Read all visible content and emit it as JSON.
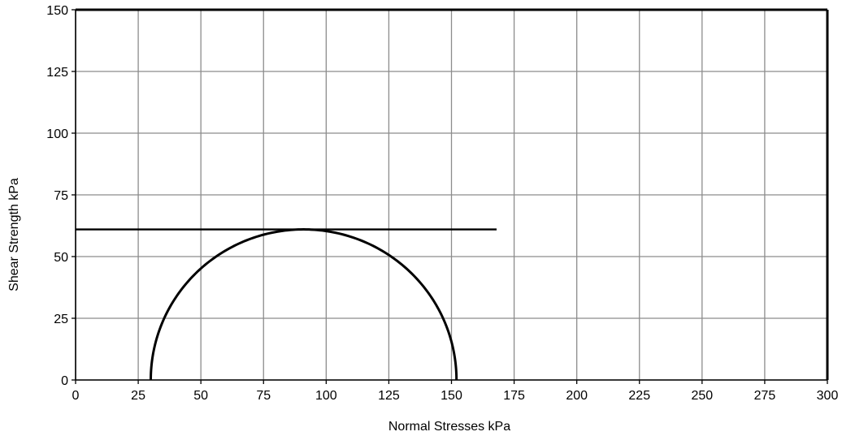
{
  "chart_data": {
    "type": "line",
    "title": "",
    "xlabel": "Normal Stresses   kPa",
    "ylabel": "Shear Strength  kPa",
    "xlim": [
      0,
      300
    ],
    "ylim": [
      0,
      150
    ],
    "x_ticks": [
      0,
      25,
      50,
      75,
      100,
      125,
      150,
      175,
      200,
      225,
      250,
      275,
      300
    ],
    "y_ticks": [
      0,
      25,
      50,
      75,
      100,
      125,
      150
    ],
    "grid": true,
    "legend": "none",
    "series": [
      {
        "kind": "failure-envelope",
        "x": [
          0,
          168
        ],
        "y": [
          61,
          61
        ],
        "color": "#000000"
      },
      {
        "kind": "mohr-circle",
        "sigma3": 30,
        "sigma1": 152,
        "center": 91,
        "radius": 61,
        "color": "#000000"
      }
    ],
    "colors": {
      "grid": "#8c8c8c",
      "frame": "#000000",
      "curve": "#000000"
    }
  }
}
